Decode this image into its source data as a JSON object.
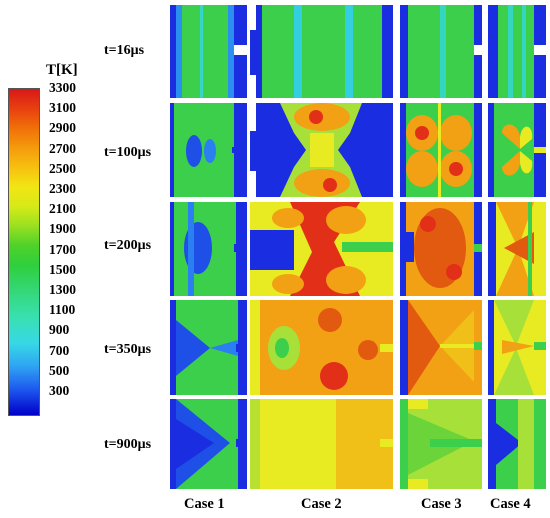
{
  "legend": {
    "title": "T[K]",
    "ticks": [
      "3300",
      "3100",
      "2900",
      "2700",
      "2500",
      "2300",
      "2100",
      "1900",
      "1700",
      "1500",
      "1300",
      "1100",
      "900",
      "700",
      "500",
      "300"
    ]
  },
  "times": [
    "t=16μs",
    "t=100μs",
    "t=200μs",
    "t=350μs",
    "t=900μs"
  ],
  "cases": [
    "Case 1",
    "Case 2",
    "Case 3",
    "Case 4"
  ],
  "colors": {
    "cold": "#1a2de0",
    "warm_green": "#3ccf4c",
    "yellow": "#e8ea22",
    "orange": "#f5a012",
    "red": "#e23018"
  }
}
